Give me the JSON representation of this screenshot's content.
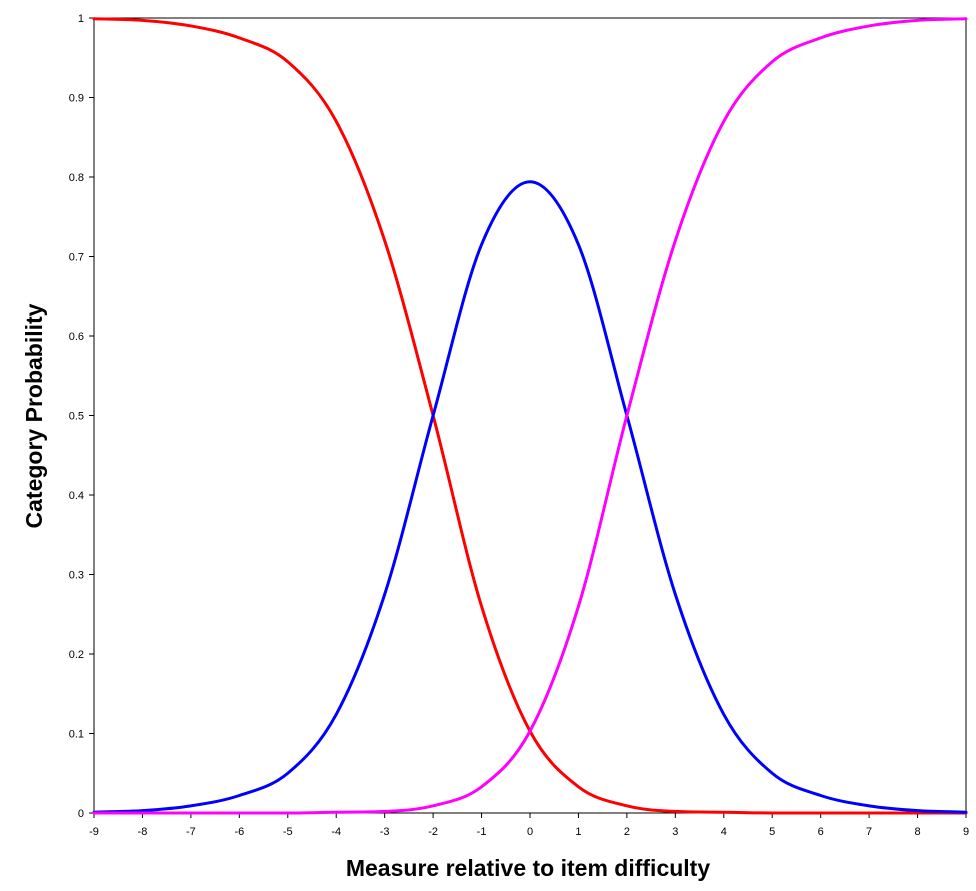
{
  "chart_data": {
    "type": "line",
    "title": "",
    "xlabel": "Measure relative to item difficulty",
    "ylabel": "Category Probability",
    "xlim": [
      -9,
      9
    ],
    "ylim": [
      0,
      1
    ],
    "x_ticks": [
      "-9",
      "-8",
      "-7",
      "-6",
      "-5",
      "-4",
      "-3",
      "-2",
      "-1",
      "0",
      "1",
      "2",
      "3",
      "4",
      "5",
      "6",
      "7",
      "8",
      "9"
    ],
    "y_ticks": [
      "0",
      "0.1",
      "0.2",
      "0.3",
      "0.4",
      "0.5",
      "0.6",
      "0.7",
      "0.8",
      "0.9",
      "1"
    ],
    "grid": false,
    "legend": "none",
    "x": [
      -9,
      -8,
      -7,
      -6,
      -5,
      -4,
      -3,
      -2,
      -1,
      0,
      1,
      2,
      3,
      4,
      5,
      6,
      7,
      8,
      9
    ],
    "series": [
      {
        "color": "#ff0000",
        "values": [
          0.999,
          0.997,
          0.99,
          0.975,
          0.945,
          0.87,
          0.72,
          0.5,
          0.26,
          0.103,
          0.033,
          0.009,
          0.002,
          0.001,
          0,
          0,
          0,
          0,
          0
        ]
      },
      {
        "color": "#0000ff",
        "values": [
          0.001,
          0.003,
          0.009,
          0.022,
          0.05,
          0.124,
          0.275,
          0.5,
          0.715,
          0.794,
          0.715,
          0.5,
          0.275,
          0.124,
          0.05,
          0.022,
          0.009,
          0.003,
          0.001
        ]
      },
      {
        "color": "#ff00ff",
        "values": [
          0,
          0,
          0,
          0,
          0,
          0.001,
          0.002,
          0.009,
          0.033,
          0.103,
          0.26,
          0.5,
          0.72,
          0.87,
          0.945,
          0.975,
          0.99,
          0.997,
          0.999
        ]
      }
    ]
  }
}
